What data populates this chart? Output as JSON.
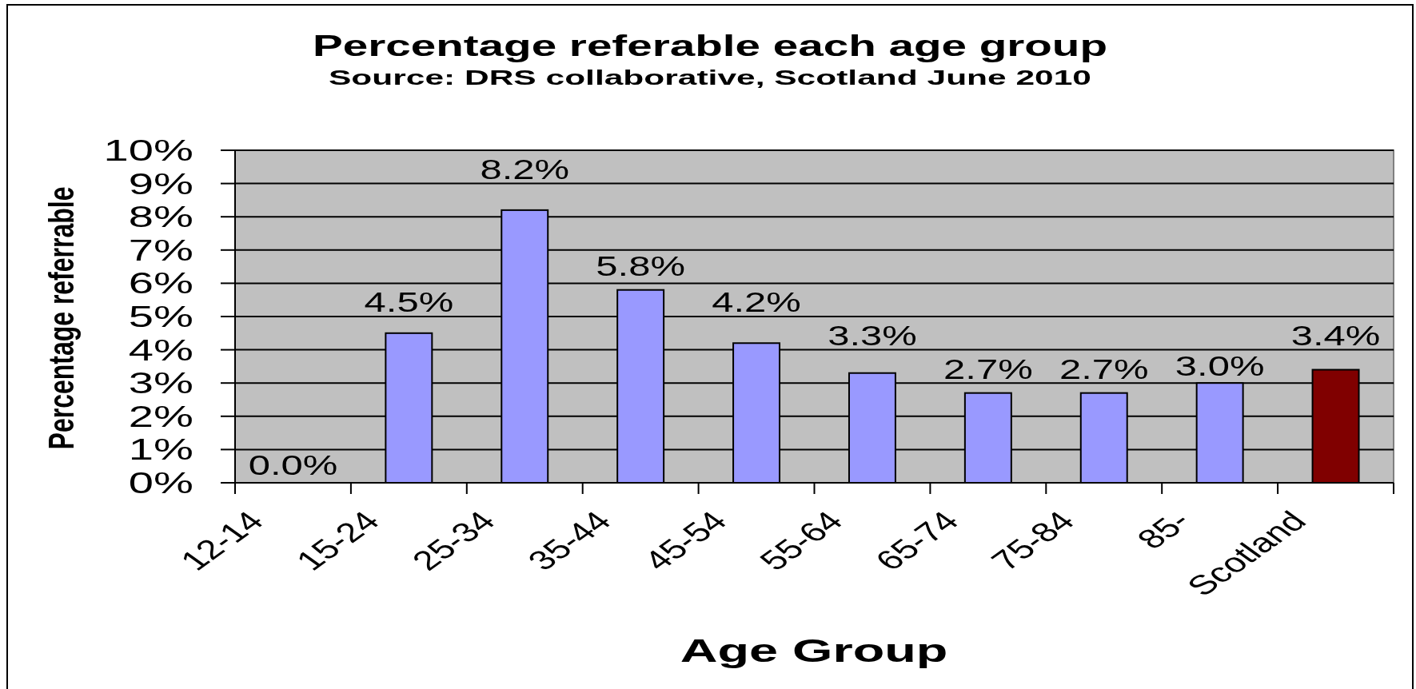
{
  "chart_data": {
    "type": "bar",
    "title": "Percentage referable each age group",
    "subtitle": "Source: DRS collaborative, Scotland June 2010",
    "xlabel": "Age Group",
    "ylabel": "Percentage referrable",
    "categories": [
      "12-14",
      "15-24",
      "25-34",
      "35-44",
      "45-54",
      "55-64",
      "65-74",
      "75-84",
      "85-",
      "Scotland"
    ],
    "values": [
      0.0,
      4.5,
      8.2,
      5.8,
      4.2,
      3.3,
      2.7,
      2.7,
      3.0,
      3.4
    ],
    "colors": [
      "#9999ff",
      "#9999ff",
      "#9999ff",
      "#9999ff",
      "#9999ff",
      "#9999ff",
      "#9999ff",
      "#9999ff",
      "#9999ff",
      "#800000"
    ],
    "value_labels": [
      "0.0%",
      "4.5%",
      "8.2%",
      "5.8%",
      "4.2%",
      "3.3%",
      "2.7%",
      "2.7%",
      "3.0%",
      "3.4%"
    ],
    "ylim": [
      0,
      10
    ],
    "yticks": [
      {
        "value": 0,
        "label": "0%"
      },
      {
        "value": 1,
        "label": "1%"
      },
      {
        "value": 2,
        "label": "2%"
      },
      {
        "value": 3,
        "label": "3%"
      },
      {
        "value": 4,
        "label": "4%"
      },
      {
        "value": 5,
        "label": "5%"
      },
      {
        "value": 6,
        "label": "6%"
      },
      {
        "value": 7,
        "label": "7%"
      },
      {
        "value": 8,
        "label": "8%"
      },
      {
        "value": 9,
        "label": "9%"
      },
      {
        "value": 10,
        "label": "10%"
      }
    ],
    "grid": "y"
  }
}
